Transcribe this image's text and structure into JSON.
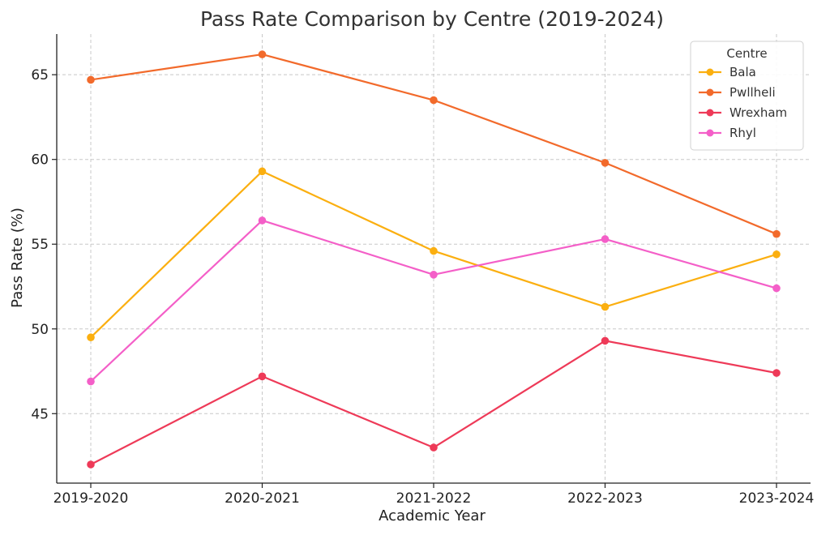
{
  "chart_data": {
    "type": "line",
    "title": "Pass Rate Comparison by Centre (2019-2024)",
    "xlabel": "Academic Year",
    "ylabel": "Pass Rate (%)",
    "categories": [
      "2019-2020",
      "2020-2021",
      "2021-2022",
      "2022-2023",
      "2023-2024"
    ],
    "ylim": [
      40.9,
      67.4
    ],
    "yticks": [
      45,
      50,
      55,
      60,
      65
    ],
    "grid": true,
    "legend": {
      "title": "Centre",
      "placement": "top-right"
    },
    "series": [
      {
        "name": "Bala",
        "color": "#FBAF10",
        "values": [
          49.5,
          59.3,
          54.6,
          51.3,
          54.4
        ]
      },
      {
        "name": "Pwllheli",
        "color": "#F26A2B",
        "values": [
          64.7,
          66.2,
          63.5,
          59.8,
          55.6
        ]
      },
      {
        "name": "Wrexham",
        "color": "#EE3A58",
        "values": [
          42.0,
          47.2,
          43.0,
          49.3,
          47.4
        ]
      },
      {
        "name": "Rhyl",
        "color": "#F45FC8",
        "values": [
          46.9,
          56.4,
          53.2,
          55.3,
          52.4
        ]
      }
    ]
  }
}
